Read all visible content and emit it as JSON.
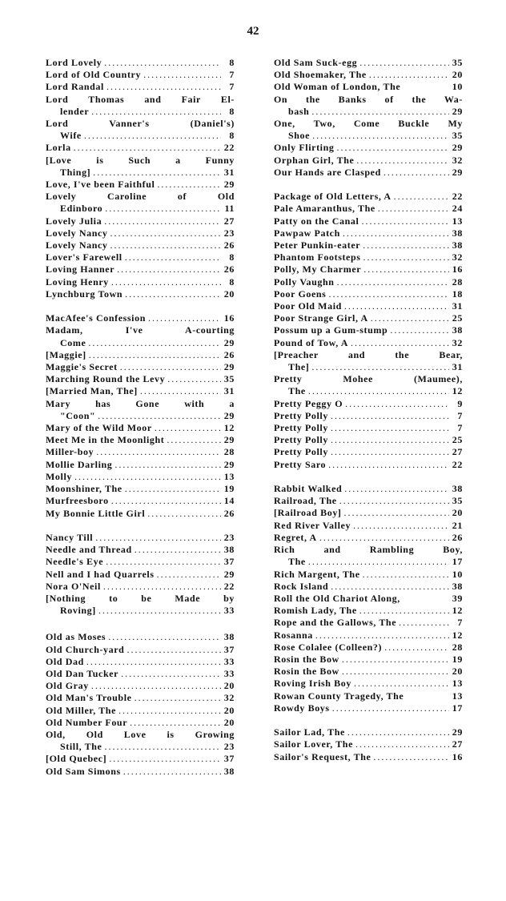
{
  "page_number": "42",
  "columns": [
    {
      "groups": [
        {
          "entries": [
            {
              "t": "Lord Lovely",
              "p": "8"
            },
            {
              "t": "Lord of Old Country",
              "p": "7"
            },
            {
              "t": "Lord Randal",
              "p": "7"
            },
            {
              "t": "Lord Thomas and Fair El-",
              "c": "lender",
              "p": "8"
            },
            {
              "t": "Lord Vanner's (Daniel's)",
              "c": "Wife",
              "p": "8"
            },
            {
              "t": "Lorla",
              "p": "22"
            },
            {
              "t": "[Love is Such a Funny",
              "c": "Thing]",
              "p": "31"
            },
            {
              "t": "Love, I've been Faithful",
              "p": "29"
            },
            {
              "t": "Lovely Caroline of Old",
              "c": "Edinboro",
              "p": "11"
            },
            {
              "t": "Lovely Julia",
              "p": "27"
            },
            {
              "t": "Lovely Nancy",
              "p": "23"
            },
            {
              "t": "Lovely Nancy",
              "p": "26"
            },
            {
              "t": "Lover's Farewell",
              "p": "8"
            },
            {
              "t": "Loving Hanner",
              "p": "26"
            },
            {
              "t": "Loving Henry",
              "p": "8"
            },
            {
              "t": "Lynchburg Town",
              "p": "20"
            }
          ]
        },
        {
          "entries": [
            {
              "t": "MacAfee's Confession",
              "p": "16"
            },
            {
              "t": "Madam, I've A-courting",
              "c": "Come",
              "p": "29"
            },
            {
              "t": "[Maggie]",
              "p": "26"
            },
            {
              "t": "Maggie's Secret",
              "p": "29"
            },
            {
              "t": "Marching Round the Levy",
              "p": "35"
            },
            {
              "t": "[Married Man, The]",
              "p": "31"
            },
            {
              "t": "Mary has Gone with a",
              "c": "\"Coon\"",
              "p": "29"
            },
            {
              "t": "Mary of the Wild Moor",
              "p": "12"
            },
            {
              "t": "Meet Me in the Moonlight",
              "p": "29"
            },
            {
              "t": "Miller-boy",
              "p": "28"
            },
            {
              "t": "Mollie Darling",
              "p": "29"
            },
            {
              "t": "Molly",
              "p": "13"
            },
            {
              "t": "Moonshiner, The",
              "p": "19"
            },
            {
              "t": "Murfreesboro",
              "p": "14"
            },
            {
              "t": "My Bonnie Little Girl",
              "p": "26"
            }
          ]
        },
        {
          "entries": [
            {
              "t": "Nancy Till",
              "p": "23"
            },
            {
              "t": "Needle and Thread",
              "p": "38"
            },
            {
              "t": "Needle's Eye",
              "p": "37"
            },
            {
              "t": "Nell and I had Quarrels",
              "p": "29"
            },
            {
              "t": "Nora O'Neil",
              "p": "22"
            },
            {
              "t": "[Nothing to be Made by",
              "c": "Roving]",
              "p": "33"
            }
          ]
        },
        {
          "extra": true,
          "entries": [
            {
              "t": "Old as Moses",
              "p": "38"
            },
            {
              "t": "Old Church-yard",
              "p": "37"
            },
            {
              "t": "Old Dad",
              "p": "33"
            },
            {
              "t": "Old Dan Tucker",
              "p": "33"
            },
            {
              "t": "Old Gray",
              "p": "20"
            },
            {
              "t": "Old Man's Trouble",
              "p": "32"
            },
            {
              "t": "Old Miller, The",
              "p": "20"
            },
            {
              "t": "Old Number Four",
              "p": "20"
            },
            {
              "t": "Old, Old Love is Growing",
              "c": "Still, The",
              "p": "23"
            },
            {
              "t": "[Old Quebec]",
              "p": "37"
            },
            {
              "t": "Old Sam Simons",
              "p": "38"
            }
          ]
        }
      ]
    },
    {
      "groups": [
        {
          "entries": [
            {
              "t": "Old Sam Suck-egg",
              "p": "35"
            },
            {
              "t": "Old Shoemaker, The",
              "p": "20"
            },
            {
              "t": "Old Woman of London, The",
              "p": "10",
              "nolead": true
            },
            {
              "t": "On the Banks of the Wa-",
              "c": "bash",
              "p": "29"
            },
            {
              "t": "One, Two, Come Buckle My",
              "c": "Shoe",
              "p": "35"
            },
            {
              "t": "Only Flirting",
              "p": "29"
            },
            {
              "t": "Orphan Girl, The",
              "p": "32"
            },
            {
              "t": "Our Hands are Clasped",
              "p": "29"
            }
          ]
        },
        {
          "entries": [
            {
              "t": "Package of Old Letters, A",
              "p": "22"
            },
            {
              "t": "Pale Amaranthus, The",
              "p": "24"
            },
            {
              "t": "Patty on the Canal",
              "p": "13"
            },
            {
              "t": "Pawpaw Patch",
              "p": "38"
            },
            {
              "t": "Peter Punkin-eater",
              "p": "38"
            },
            {
              "t": "Phantom Footsteps",
              "p": "32"
            },
            {
              "t": "Polly, My Charmer",
              "p": "16"
            },
            {
              "t": "Polly Vaughn",
              "p": "28"
            },
            {
              "t": "Poor Goens",
              "p": "18"
            },
            {
              "t": "Poor Old Maid",
              "p": "31"
            },
            {
              "t": "Poor Strange Girl, A",
              "p": "25"
            },
            {
              "t": "Possum up a Gum-stump",
              "p": "38"
            },
            {
              "t": "Pound of Tow, A",
              "p": "32"
            },
            {
              "t": "[Preacher and the Bear,",
              "c": "The]",
              "p": "31"
            },
            {
              "t": "Pretty Mohee (Maumee),",
              "c": "The",
              "p": "12"
            },
            {
              "t": "Pretty Peggy O",
              "p": "9"
            },
            {
              "t": "Pretty Polly",
              "p": "7"
            },
            {
              "t": "Pretty Polly",
              "p": "7"
            },
            {
              "t": "Pretty Polly",
              "p": "25"
            },
            {
              "t": "Pretty Polly",
              "p": "27"
            },
            {
              "t": "Pretty Saro",
              "p": "22"
            }
          ]
        },
        {
          "entries": [
            {
              "t": "Rabbit Walked",
              "p": "38"
            },
            {
              "t": "Railroad, The",
              "p": "35"
            },
            {
              "t": "[Railroad Boy]",
              "p": "20"
            },
            {
              "t": "Red River Valley",
              "p": "21"
            },
            {
              "t": "Regret, A",
              "p": "26"
            },
            {
              "t": "Rich and Rambling Boy,",
              "c": "The",
              "p": "17"
            },
            {
              "t": "Rich Margent, The",
              "p": "10"
            },
            {
              "t": "Rock Island",
              "p": "38"
            },
            {
              "t": "Roll the Old Chariot Along,",
              "p": "39",
              "nolead": true
            },
            {
              "t": "Romish Lady, The",
              "p": "12"
            },
            {
              "t": "Rope and the Gallows, The",
              "p": "7"
            },
            {
              "t": "Rosanna",
              "p": "12"
            },
            {
              "t": "Rose Colalee (Colleen?)",
              "p": "28"
            },
            {
              "t": "Rosin the Bow",
              "p": "19"
            },
            {
              "t": "Rosin the Bow",
              "p": "20"
            },
            {
              "t": "Roving Irish Boy",
              "p": "13"
            },
            {
              "t": "Rowan County Tragedy, The",
              "p": "13",
              "nolead": true
            },
            {
              "t": "Rowdy Boys",
              "p": "17"
            }
          ]
        },
        {
          "entries": [
            {
              "t": "Sailor Lad, The",
              "p": "29"
            },
            {
              "t": "Sailor Lover, The",
              "p": "27"
            },
            {
              "t": "Sailor's Request, The",
              "p": "16"
            }
          ]
        }
      ]
    }
  ]
}
